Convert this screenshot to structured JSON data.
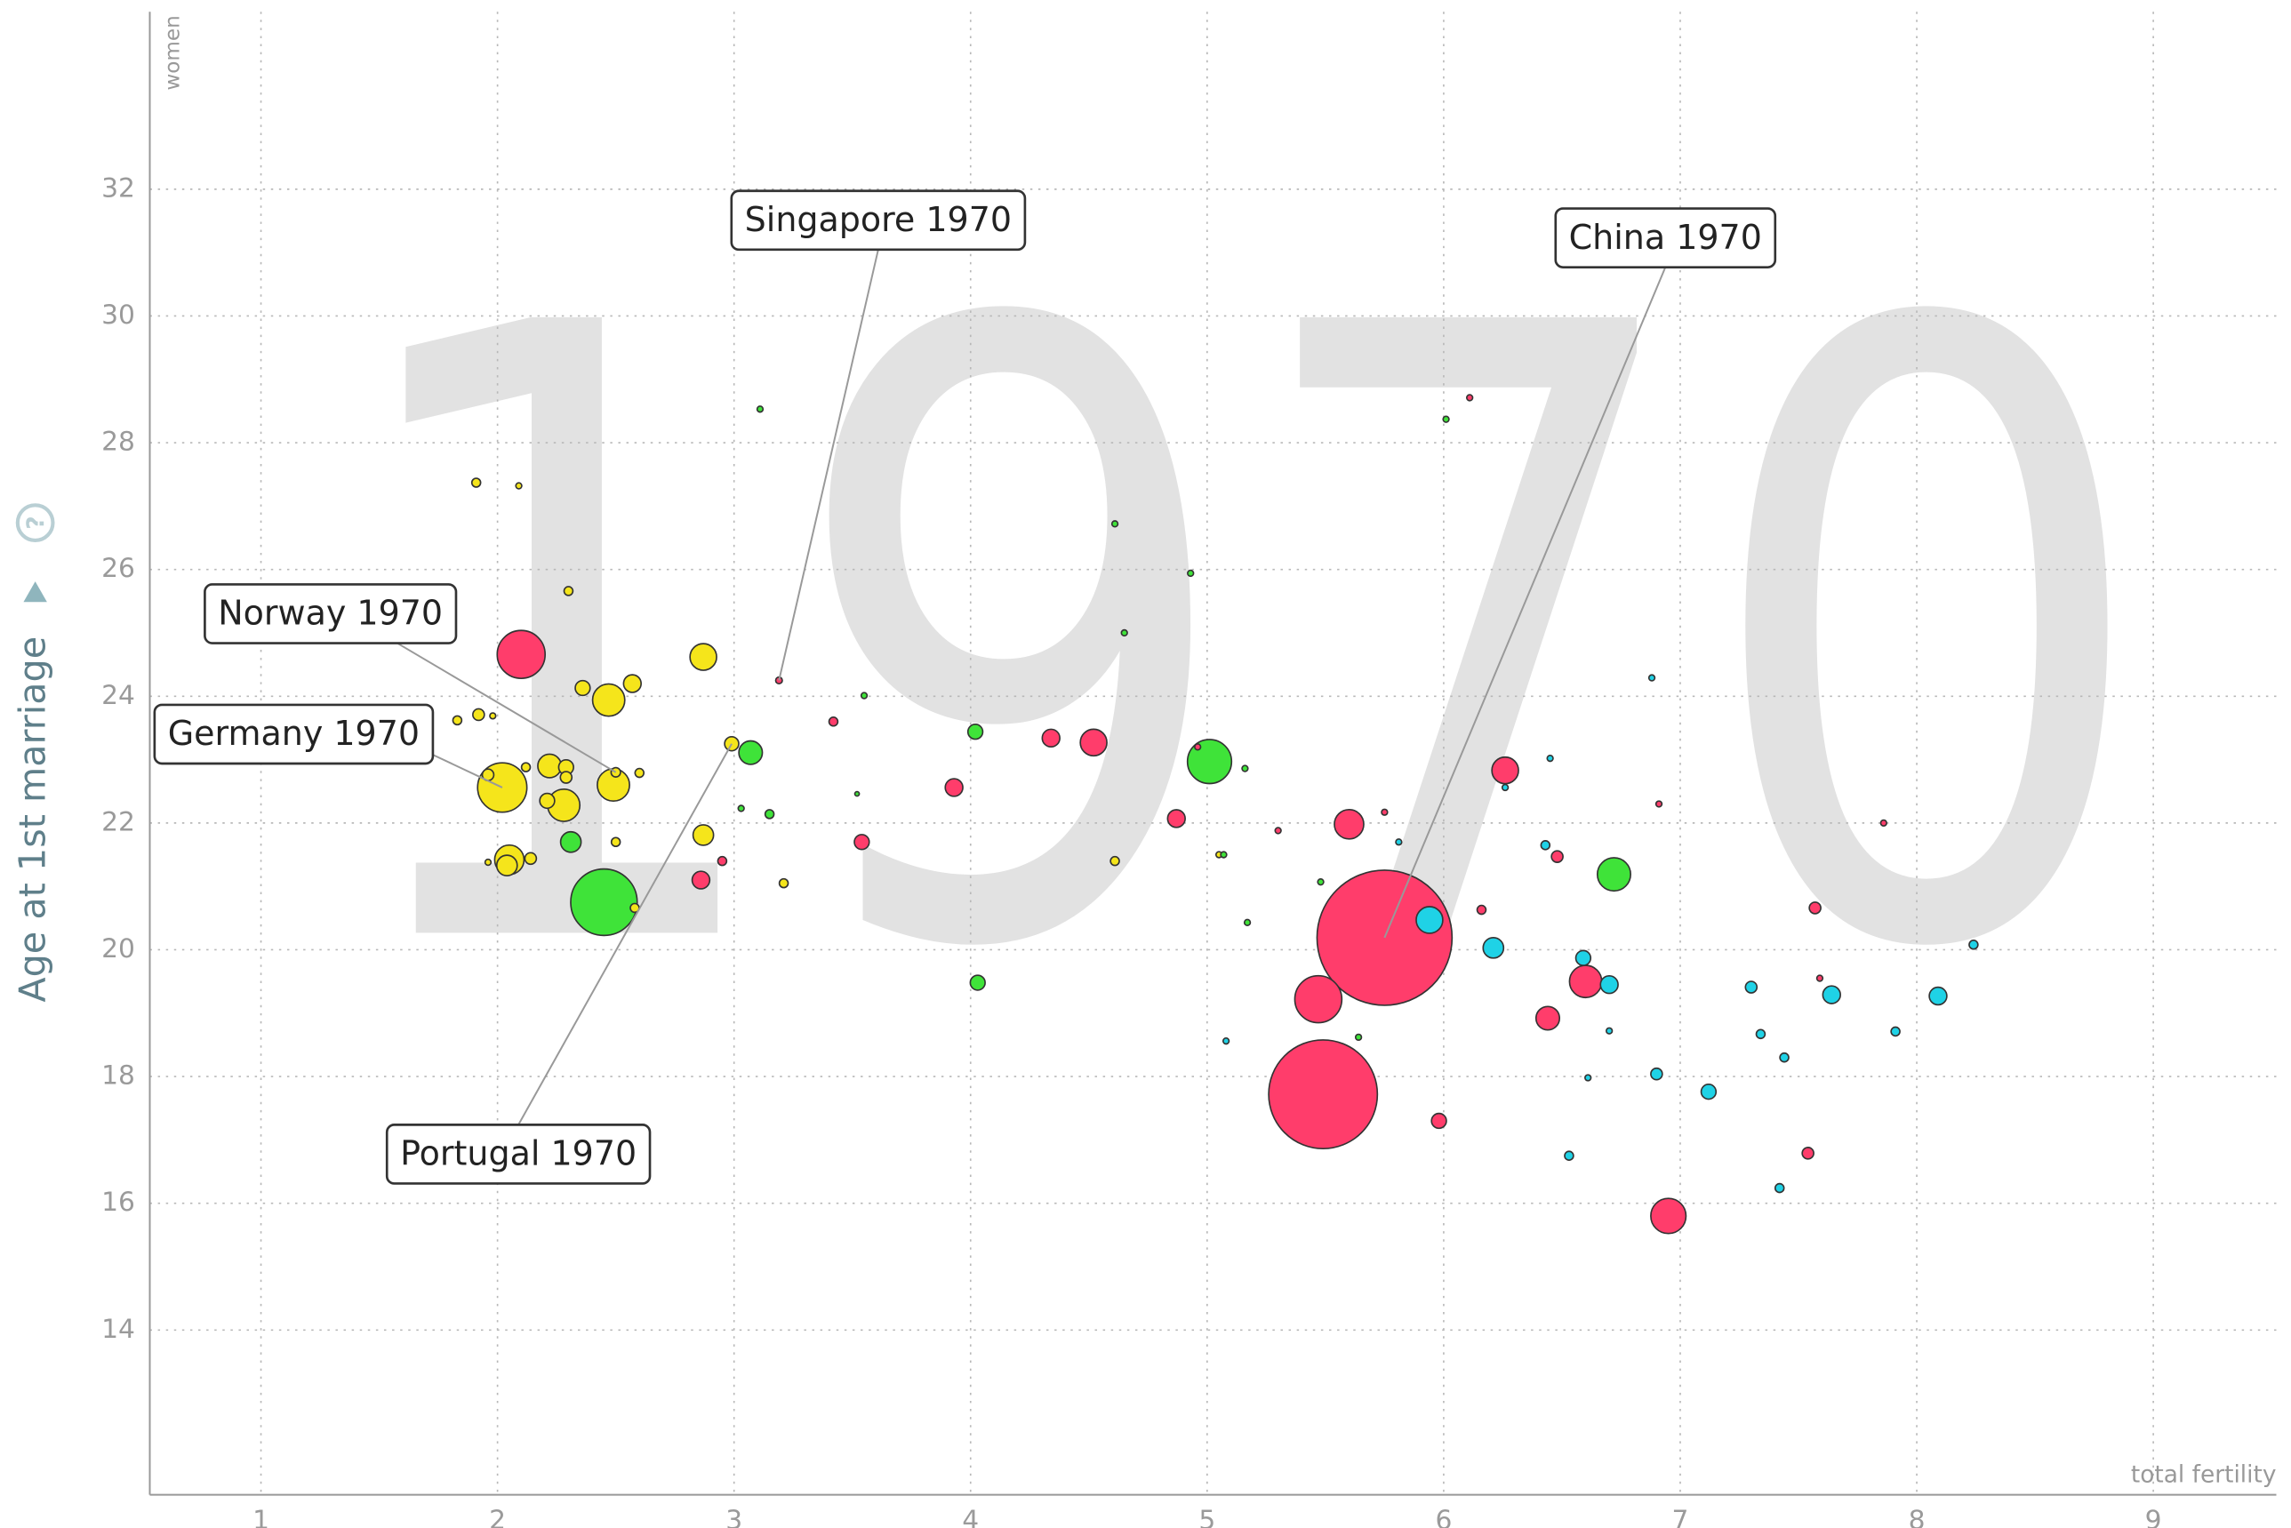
{
  "chart_data": {
    "type": "bubble",
    "year": "1970",
    "y_label": "Age at 1st marriage",
    "y_sublabel": "women",
    "x_label": "total fertility",
    "info_icon": "?",
    "xlim": [
      0.53,
      9.52
    ],
    "ylim": [
      11.4,
      34.8
    ],
    "xticks": [
      1,
      2,
      3,
      4,
      5,
      6,
      7,
      8,
      9
    ],
    "yticks": [
      14,
      16,
      18,
      20,
      22,
      24,
      26,
      28,
      30,
      32
    ],
    "grid": true,
    "series": [
      {
        "color": "#f5e51b",
        "x": [
          1.91,
          2.09,
          2.3,
          2.87,
          2.36,
          2.47,
          2.57,
          1.83,
          1.92,
          1.98,
          2.02,
          1.96,
          2.12,
          2.22,
          2.29,
          2.29,
          2.21,
          2.28,
          2.49,
          2.5,
          2.6,
          2.5,
          2.05,
          2.04,
          2.14,
          1.96,
          2.58,
          2.87,
          2.99,
          3.21,
          4.61,
          5.05
        ],
        "values": [
          27.37,
          27.32,
          25.66,
          24.62,
          24.13,
          23.94,
          24.2,
          23.62,
          23.71,
          23.69,
          22.56,
          22.76,
          22.88,
          22.9,
          22.88,
          22.72,
          22.35,
          22.28,
          22.6,
          22.8,
          22.79,
          21.7,
          21.42,
          21.33,
          21.44,
          21.38,
          20.66,
          21.81,
          23.25,
          21.05,
          21.4,
          21.5
        ],
        "sizes": [
          3.5,
          1.6,
          3.5,
          32,
          10,
          47,
          14,
          3.5,
          6,
          1.6,
          110,
          6,
          3.5,
          25,
          10,
          6,
          10,
          47,
          47,
          4,
          3.5,
          3.5,
          39,
          19,
          6,
          1.6,
          3.5,
          19,
          9,
          3.5,
          3.5,
          1.6
        ]
      },
      {
        "color": "#3fe339",
        "x": [
          2.45,
          2.31,
          3.07,
          3.15,
          3.03,
          3.55,
          4.02,
          4.03,
          5.01,
          6.72,
          3.11,
          4.61,
          4.93,
          4.65,
          5.16,
          5.07,
          5.17,
          5.48,
          6.01,
          5.64,
          3.52
        ],
        "values": [
          20.75,
          21.7,
          23.11,
          22.14,
          22.23,
          24.01,
          23.44,
          19.48,
          22.97,
          21.19,
          28.53,
          26.72,
          25.94,
          25.0,
          22.86,
          21.5,
          20.43,
          21.07,
          28.37,
          18.62,
          22.46
        ],
        "sizes": [
          200,
          19,
          25,
          3.5,
          1.6,
          1.6,
          10,
          10,
          88,
          50,
          1.6,
          1.6,
          1.6,
          1.6,
          1.6,
          1.6,
          1.6,
          1.6,
          1.6,
          1.6,
          0.9
        ]
      },
      {
        "color": "#ff3d6b",
        "x": [
          2.1,
          3.19,
          3.42,
          3.54,
          2.95,
          2.86,
          3.93,
          4.34,
          4.52,
          4.87,
          4.96,
          5.3,
          5.6,
          5.75,
          5.75,
          5.47,
          5.49,
          5.98,
          6.16,
          6.26,
          6.48,
          6.6,
          6.44,
          6.95,
          7.57,
          7.54,
          7.86,
          6.91,
          7.59,
          6.11
        ],
        "values": [
          24.66,
          24.25,
          23.6,
          21.7,
          21.4,
          21.1,
          22.56,
          23.34,
          23.27,
          22.07,
          23.2,
          21.88,
          21.98,
          22.17,
          20.19,
          19.22,
          17.72,
          17.3,
          20.63,
          22.83,
          21.47,
          19.5,
          18.92,
          15.8,
          20.66,
          16.79,
          22.0,
          22.3,
          19.55,
          28.71
        ],
        "sizes": [
          104,
          2,
          3.5,
          10,
          3.5,
          14,
          14,
          14,
          32,
          14,
          1.6,
          1.6,
          39,
          1.6,
          826,
          100,
          535,
          10,
          3.5,
          32,
          6,
          47,
          25,
          56,
          6,
          6,
          1.6,
          1.6,
          1.6,
          1.6
        ]
      },
      {
        "color": "#1fd2e6",
        "x": [
          5.94,
          6.21,
          6.59,
          6.7,
          6.43,
          6.45,
          6.26,
          6.88,
          6.7,
          6.61,
          6.9,
          7.12,
          6.53,
          7.3,
          7.34,
          7.44,
          7.42,
          7.64,
          8.09,
          8.24,
          7.91,
          5.81,
          5.08
        ],
        "values": [
          20.47,
          20.03,
          19.87,
          19.45,
          21.65,
          23.02,
          22.56,
          24.29,
          18.72,
          17.98,
          18.04,
          17.76,
          16.75,
          19.41,
          18.67,
          18.3,
          16.24,
          19.29,
          19.27,
          20.08,
          18.71,
          21.7,
          18.56
        ],
        "sizes": [
          32,
          19,
          10,
          14,
          3.5,
          1.6,
          1.6,
          1.6,
          1.6,
          1.6,
          6,
          10,
          3.5,
          6,
          3.5,
          3.5,
          3.5,
          14,
          14,
          3.5,
          3.5,
          1.6,
          1.6
        ]
      }
    ],
    "annotations": [
      {
        "text": "Singapore 1970",
        "x": 3.19,
        "y": 24.25
      },
      {
        "text": "China 1970",
        "x": 5.75,
        "y": 20.19
      },
      {
        "text": "Norway 1970",
        "x": 2.5,
        "y": 22.8
      },
      {
        "text": "Germany 1970",
        "x": 2.02,
        "y": 22.56
      },
      {
        "text": "Portugal 1970",
        "x": 2.99,
        "y": 23.25
      }
    ]
  }
}
